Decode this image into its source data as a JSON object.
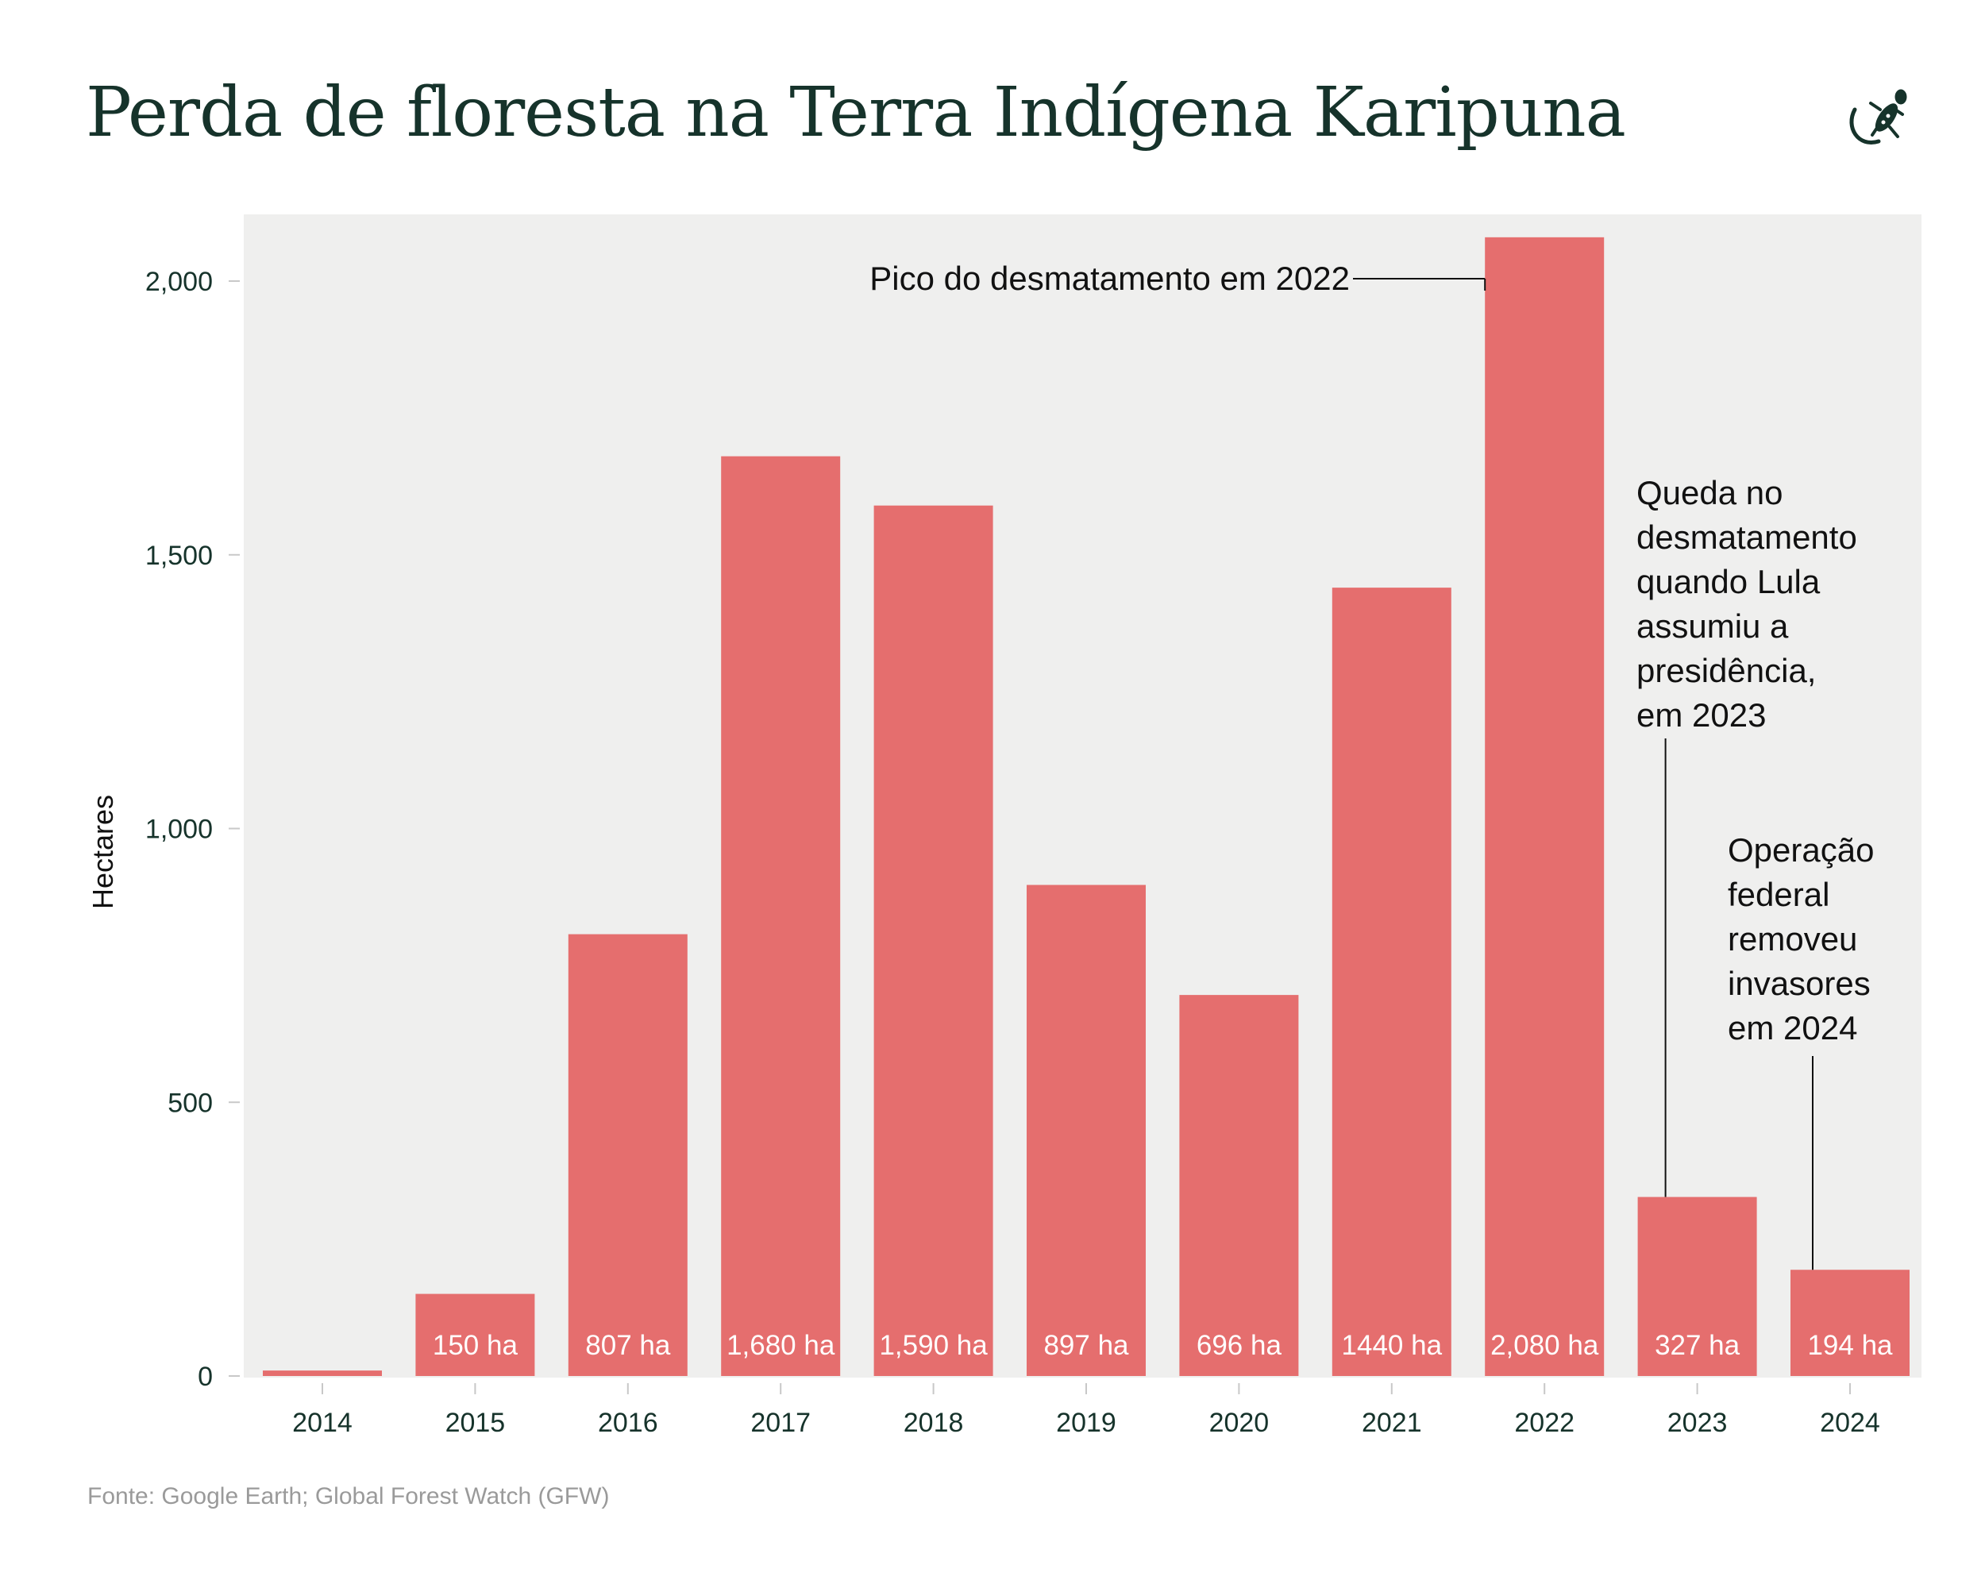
{
  "title": "Perda de floresta na Terra Indígena Karipuna",
  "source": "Fonte:  Google Earth; Global Forest Watch (GFW)",
  "logo_icon": "gecko-icon",
  "colors": {
    "bar": "#e56e6e",
    "plot_bg": "#efefee",
    "title": "#16332b",
    "source": "#9a9a9a"
  },
  "chart_data": {
    "type": "bar",
    "categories": [
      "2014",
      "2015",
      "2016",
      "2017",
      "2018",
      "2019",
      "2020",
      "2021",
      "2022",
      "2023",
      "2024"
    ],
    "values": [
      10,
      150,
      807,
      1680,
      1590,
      897,
      696,
      1440,
      2080,
      327,
      194
    ],
    "data_labels": [
      "",
      "150 ha",
      "807 ha",
      "1,680 ha",
      "1,590 ha",
      "897 ha",
      "696 ha",
      "1440 ha",
      "2,080 ha",
      "327 ha",
      "194 ha"
    ],
    "title": "Perda de floresta na Terra Indígena Karipuna",
    "xlabel": "",
    "ylabel": "Hectares",
    "ylim": [
      0,
      2100
    ],
    "yticks": [
      0,
      500,
      1000,
      1500,
      2000
    ],
    "ytick_labels": [
      "0",
      "500",
      "1,000",
      "1,500",
      "2,000"
    ],
    "grid": false,
    "annotations": [
      {
        "category": "2022",
        "lines": [
          "Pico do desmatamento em 2022"
        ]
      },
      {
        "category": "2023",
        "lines": [
          "Queda no",
          "desmatamento",
          "quando Lula",
          "assumiu a",
          "presidência,",
          "em 2023"
        ]
      },
      {
        "category": "2024",
        "lines": [
          "Operação",
          "federal",
          "removeu",
          "invasores",
          "em 2024"
        ]
      }
    ]
  }
}
